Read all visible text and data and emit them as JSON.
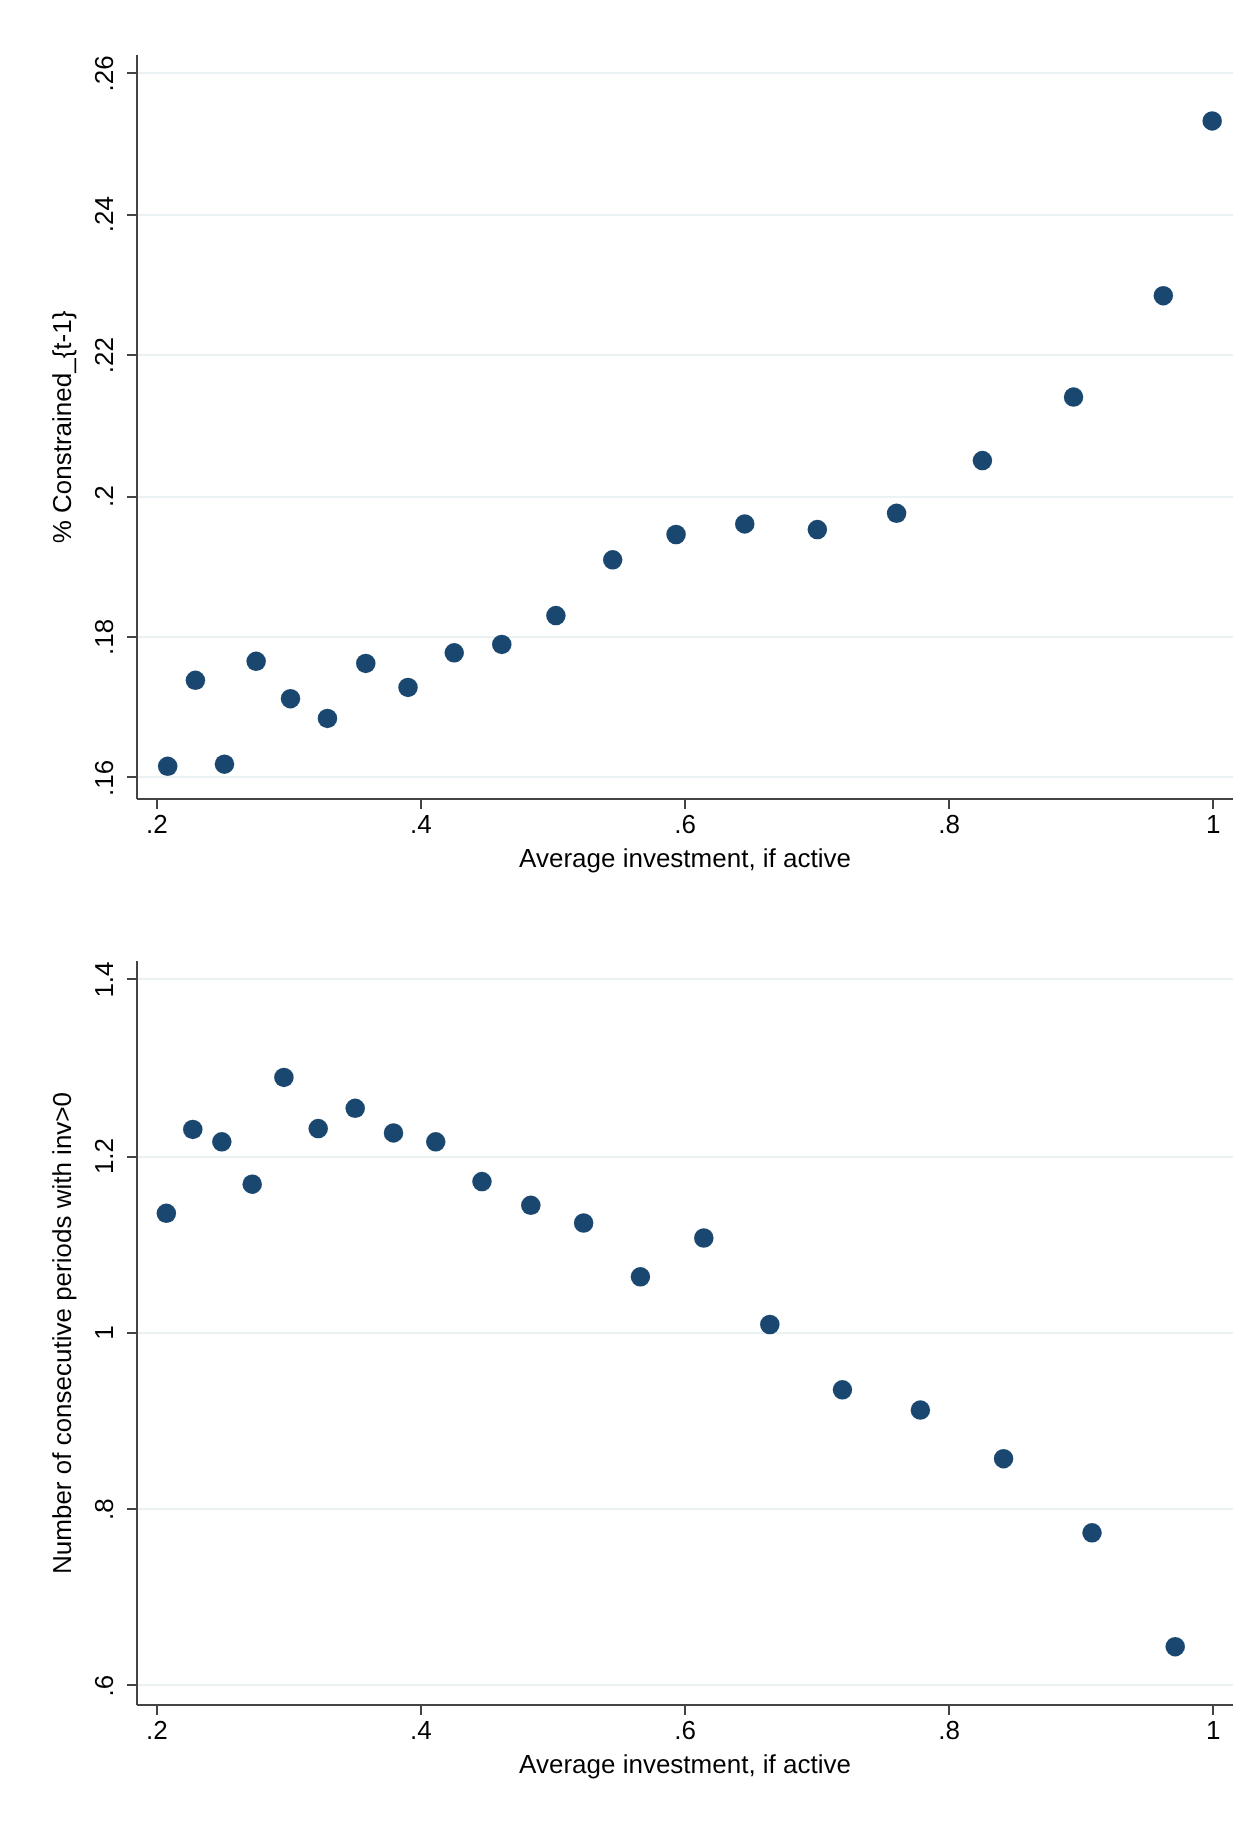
{
  "chart_data": [
    {
      "type": "scatter",
      "xlabel": "Average investment, if active",
      "ylabel": "% Constrained_{t-1}",
      "marker": "circle",
      "grid": "y",
      "x": [
        0.209,
        0.23,
        0.252,
        0.276,
        0.302,
        0.33,
        0.359,
        0.391,
        0.426,
        0.462,
        0.503,
        0.546,
        0.594,
        0.646,
        0.701,
        0.761,
        0.826,
        0.895,
        0.963,
        1.0
      ],
      "series": [
        {
          "color": "#1a476f",
          "values": [
            0.1615,
            0.1737,
            0.1618,
            0.1764,
            0.1711,
            0.1683,
            0.1761,
            0.1727,
            0.1776,
            0.1788,
            0.1829,
            0.1908,
            0.1944,
            0.1959,
            0.1951,
            0.1974,
            0.2049,
            0.2139,
            0.2283,
            0.2531
          ]
        }
      ],
      "xlim": [
        0.185,
        1.015
      ],
      "ylim": [
        0.157,
        0.2626
      ],
      "xticks": [
        {
          "value": 0.2,
          "label": ".2"
        },
        {
          "value": 0.4,
          "label": ".4"
        },
        {
          "value": 0.6,
          "label": ".6"
        },
        {
          "value": 0.8,
          "label": ".8"
        },
        1
      ],
      "yticks": [
        {
          "value": 0.16,
          "label": ".16"
        },
        {
          "value": 0.18,
          "label": ".18"
        },
        {
          "value": 0.2,
          "label": ".2"
        },
        {
          "value": 0.22,
          "label": ".22"
        },
        {
          "value": 0.24,
          "label": ".24"
        },
        {
          "value": 0.26,
          "label": ".26"
        }
      ]
    },
    {
      "type": "scatter",
      "xlabel": "Average investment, if active",
      "ylabel": "Number of consecutive periods with inv>0",
      "marker": "circle",
      "grid": "y",
      "x": [
        0.208,
        0.228,
        0.25,
        0.273,
        0.297,
        0.323,
        0.351,
        0.38,
        0.412,
        0.447,
        0.484,
        0.524,
        0.567,
        0.615,
        0.665,
        0.72,
        0.779,
        0.842,
        0.909,
        0.972
      ],
      "series": [
        {
          "color": "#1a476f",
          "values": [
            1.134,
            1.229,
            1.215,
            1.167,
            1.288,
            1.23,
            1.253,
            1.225,
            1.215,
            1.17,
            1.143,
            1.123,
            1.062,
            1.106,
            1.008,
            0.934,
            0.911,
            0.856,
            0.772,
            0.643
          ]
        }
      ],
      "xlim": [
        0.185,
        1.015
      ],
      "ylim": [
        0.578,
        1.421
      ],
      "xticks": [
        {
          "value": 0.2,
          "label": ".2"
        },
        {
          "value": 0.4,
          "label": ".4"
        },
        {
          "value": 0.6,
          "label": ".6"
        },
        {
          "value": 0.8,
          "label": ".8"
        },
        1
      ],
      "yticks": [
        {
          "value": 0.6,
          "label": ".6"
        },
        {
          "value": 0.8,
          "label": ".8"
        },
        1,
        1.2,
        1.4
      ]
    }
  ]
}
